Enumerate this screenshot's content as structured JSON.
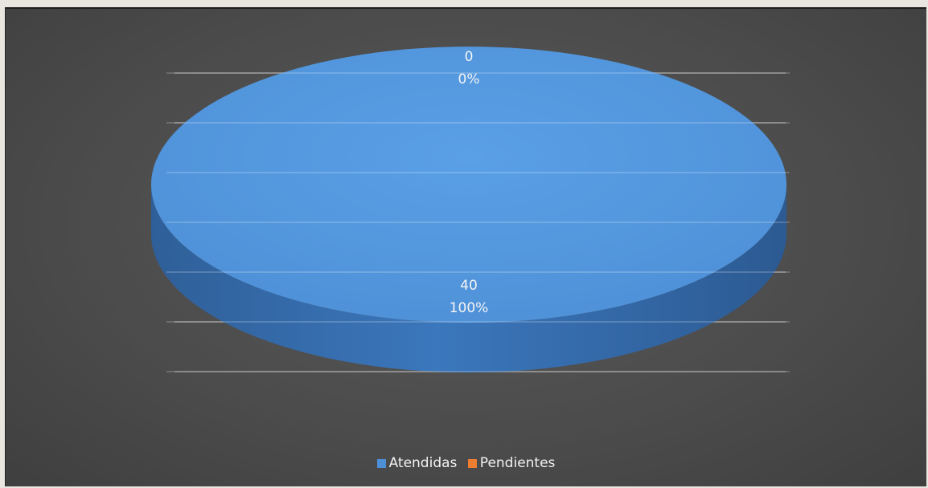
{
  "chart_data": {
    "type": "pie",
    "style": "3d",
    "title": "",
    "categories": [
      "Atendidas",
      "Pendientes"
    ],
    "values": [
      40,
      0
    ],
    "percent_labels": [
      "100%",
      "0%"
    ],
    "colors": [
      "#4d8fd6",
      "#ed7d31"
    ],
    "legend_position": "bottom",
    "grid": true,
    "background": "#4b4b4b"
  }
}
